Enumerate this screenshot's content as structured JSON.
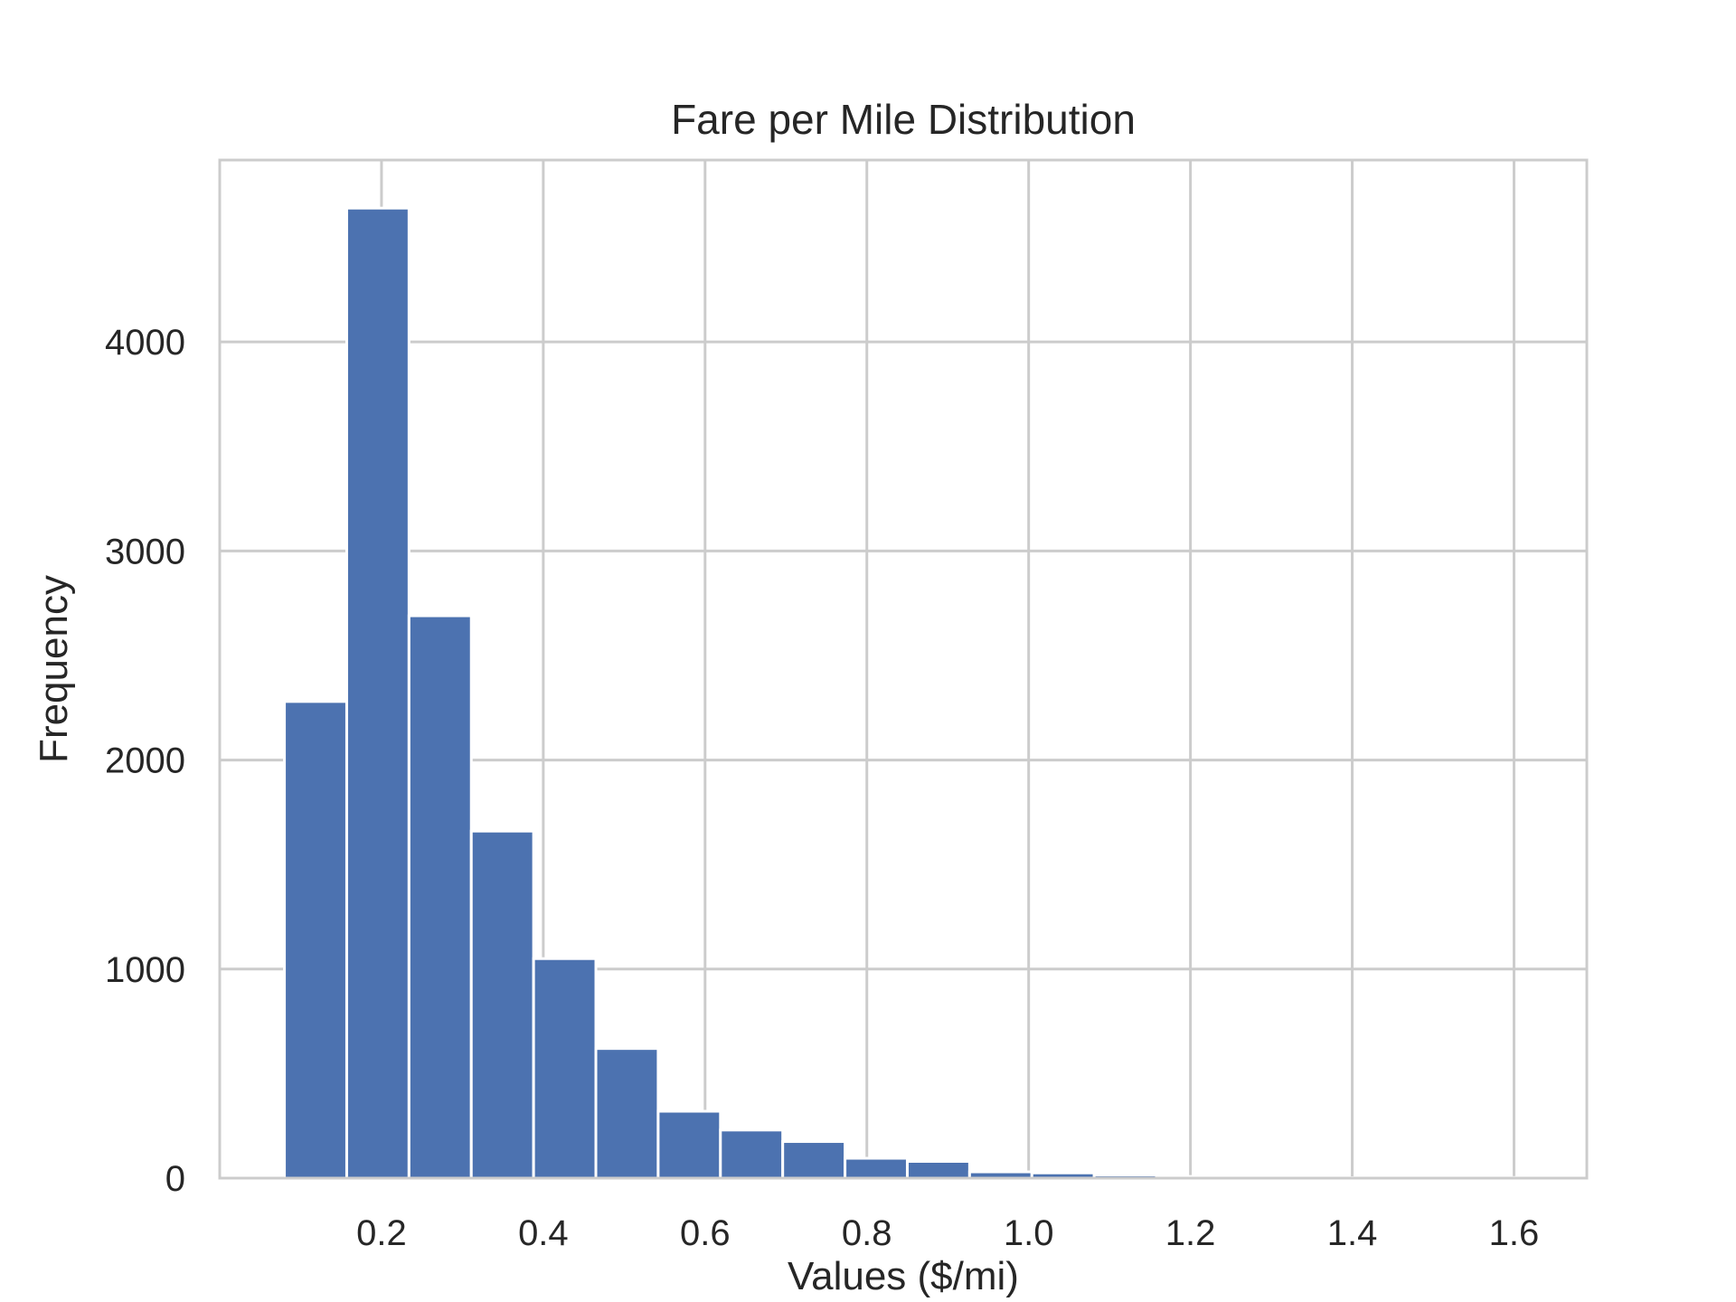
{
  "chart_data": {
    "type": "bar",
    "subtype": "histogram",
    "title": "Fare per Mile Distribution",
    "xlabel": "Values ($/mi)",
    "ylabel": "Frequency",
    "bin_edges": [
      0.08,
      0.157,
      0.234,
      0.311,
      0.388,
      0.465,
      0.542,
      0.619,
      0.696,
      0.773,
      0.85,
      0.927,
      1.004,
      1.081,
      1.158,
      1.235,
      1.312,
      1.389,
      1.466,
      1.543,
      1.62
    ],
    "values": [
      2280,
      4640,
      2690,
      1660,
      1050,
      620,
      320,
      230,
      175,
      95,
      80,
      30,
      25,
      15,
      8,
      5,
      3,
      2,
      2,
      3
    ],
    "xlim": [
      0.0,
      1.69
    ],
    "ylim": [
      0,
      4870
    ],
    "xticks": [
      0.2,
      0.4,
      0.6,
      0.8,
      1.0,
      1.2,
      1.4,
      1.6
    ],
    "xtick_labels": [
      "0.2",
      "0.4",
      "0.6",
      "0.8",
      "1.0",
      "1.2",
      "1.4",
      "1.6"
    ],
    "yticks": [
      0,
      1000,
      2000,
      3000,
      4000
    ],
    "ytick_labels": [
      "0",
      "1000",
      "2000",
      "3000",
      "4000"
    ],
    "grid": true,
    "colors": {
      "bar": "#4c72b0",
      "bar_edge": "#ffffff",
      "grid": "#cccccc",
      "frame": "#cccccc",
      "text": "#262626"
    }
  }
}
